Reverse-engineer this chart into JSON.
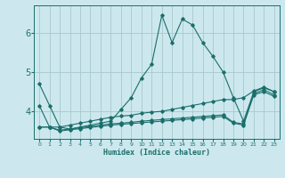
{
  "xlabel": "Humidex (Indice chaleur)",
  "ylabel": "",
  "background_color": "#cce8ee",
  "grid_color": "#a8c8cc",
  "line_color": "#1a6e6a",
  "xlim": [
    -0.5,
    23.5
  ],
  "ylim": [
    3.3,
    6.7
  ],
  "yticks": [
    4,
    5,
    6
  ],
  "xticks": [
    0,
    1,
    2,
    3,
    4,
    5,
    6,
    7,
    8,
    9,
    10,
    11,
    12,
    13,
    14,
    15,
    16,
    17,
    18,
    19,
    20,
    21,
    22,
    23
  ],
  "series": [
    [
      4.7,
      4.15,
      3.6,
      3.55,
      3.6,
      3.65,
      3.7,
      3.75,
      4.05,
      4.35,
      4.85,
      5.2,
      6.45,
      5.75,
      6.35,
      6.2,
      5.75,
      5.4,
      5.0,
      4.35,
      3.75,
      4.5,
      4.6,
      4.5
    ],
    [
      4.15,
      3.6,
      3.6,
      3.65,
      3.7,
      3.75,
      3.8,
      3.85,
      3.88,
      3.9,
      3.95,
      3.98,
      4.0,
      4.05,
      4.1,
      4.15,
      4.2,
      4.25,
      4.3,
      4.3,
      4.35,
      4.52,
      4.62,
      4.5
    ],
    [
      3.6,
      3.6,
      3.52,
      3.55,
      3.58,
      3.62,
      3.65,
      3.68,
      3.7,
      3.72,
      3.75,
      3.77,
      3.79,
      3.81,
      3.83,
      3.85,
      3.87,
      3.89,
      3.91,
      3.72,
      3.68,
      4.45,
      4.55,
      4.42
    ],
    [
      3.6,
      3.6,
      3.5,
      3.53,
      3.56,
      3.59,
      3.62,
      3.65,
      3.67,
      3.69,
      3.71,
      3.73,
      3.75,
      3.77,
      3.79,
      3.81,
      3.83,
      3.85,
      3.87,
      3.7,
      3.65,
      4.42,
      4.5,
      4.38
    ]
  ]
}
